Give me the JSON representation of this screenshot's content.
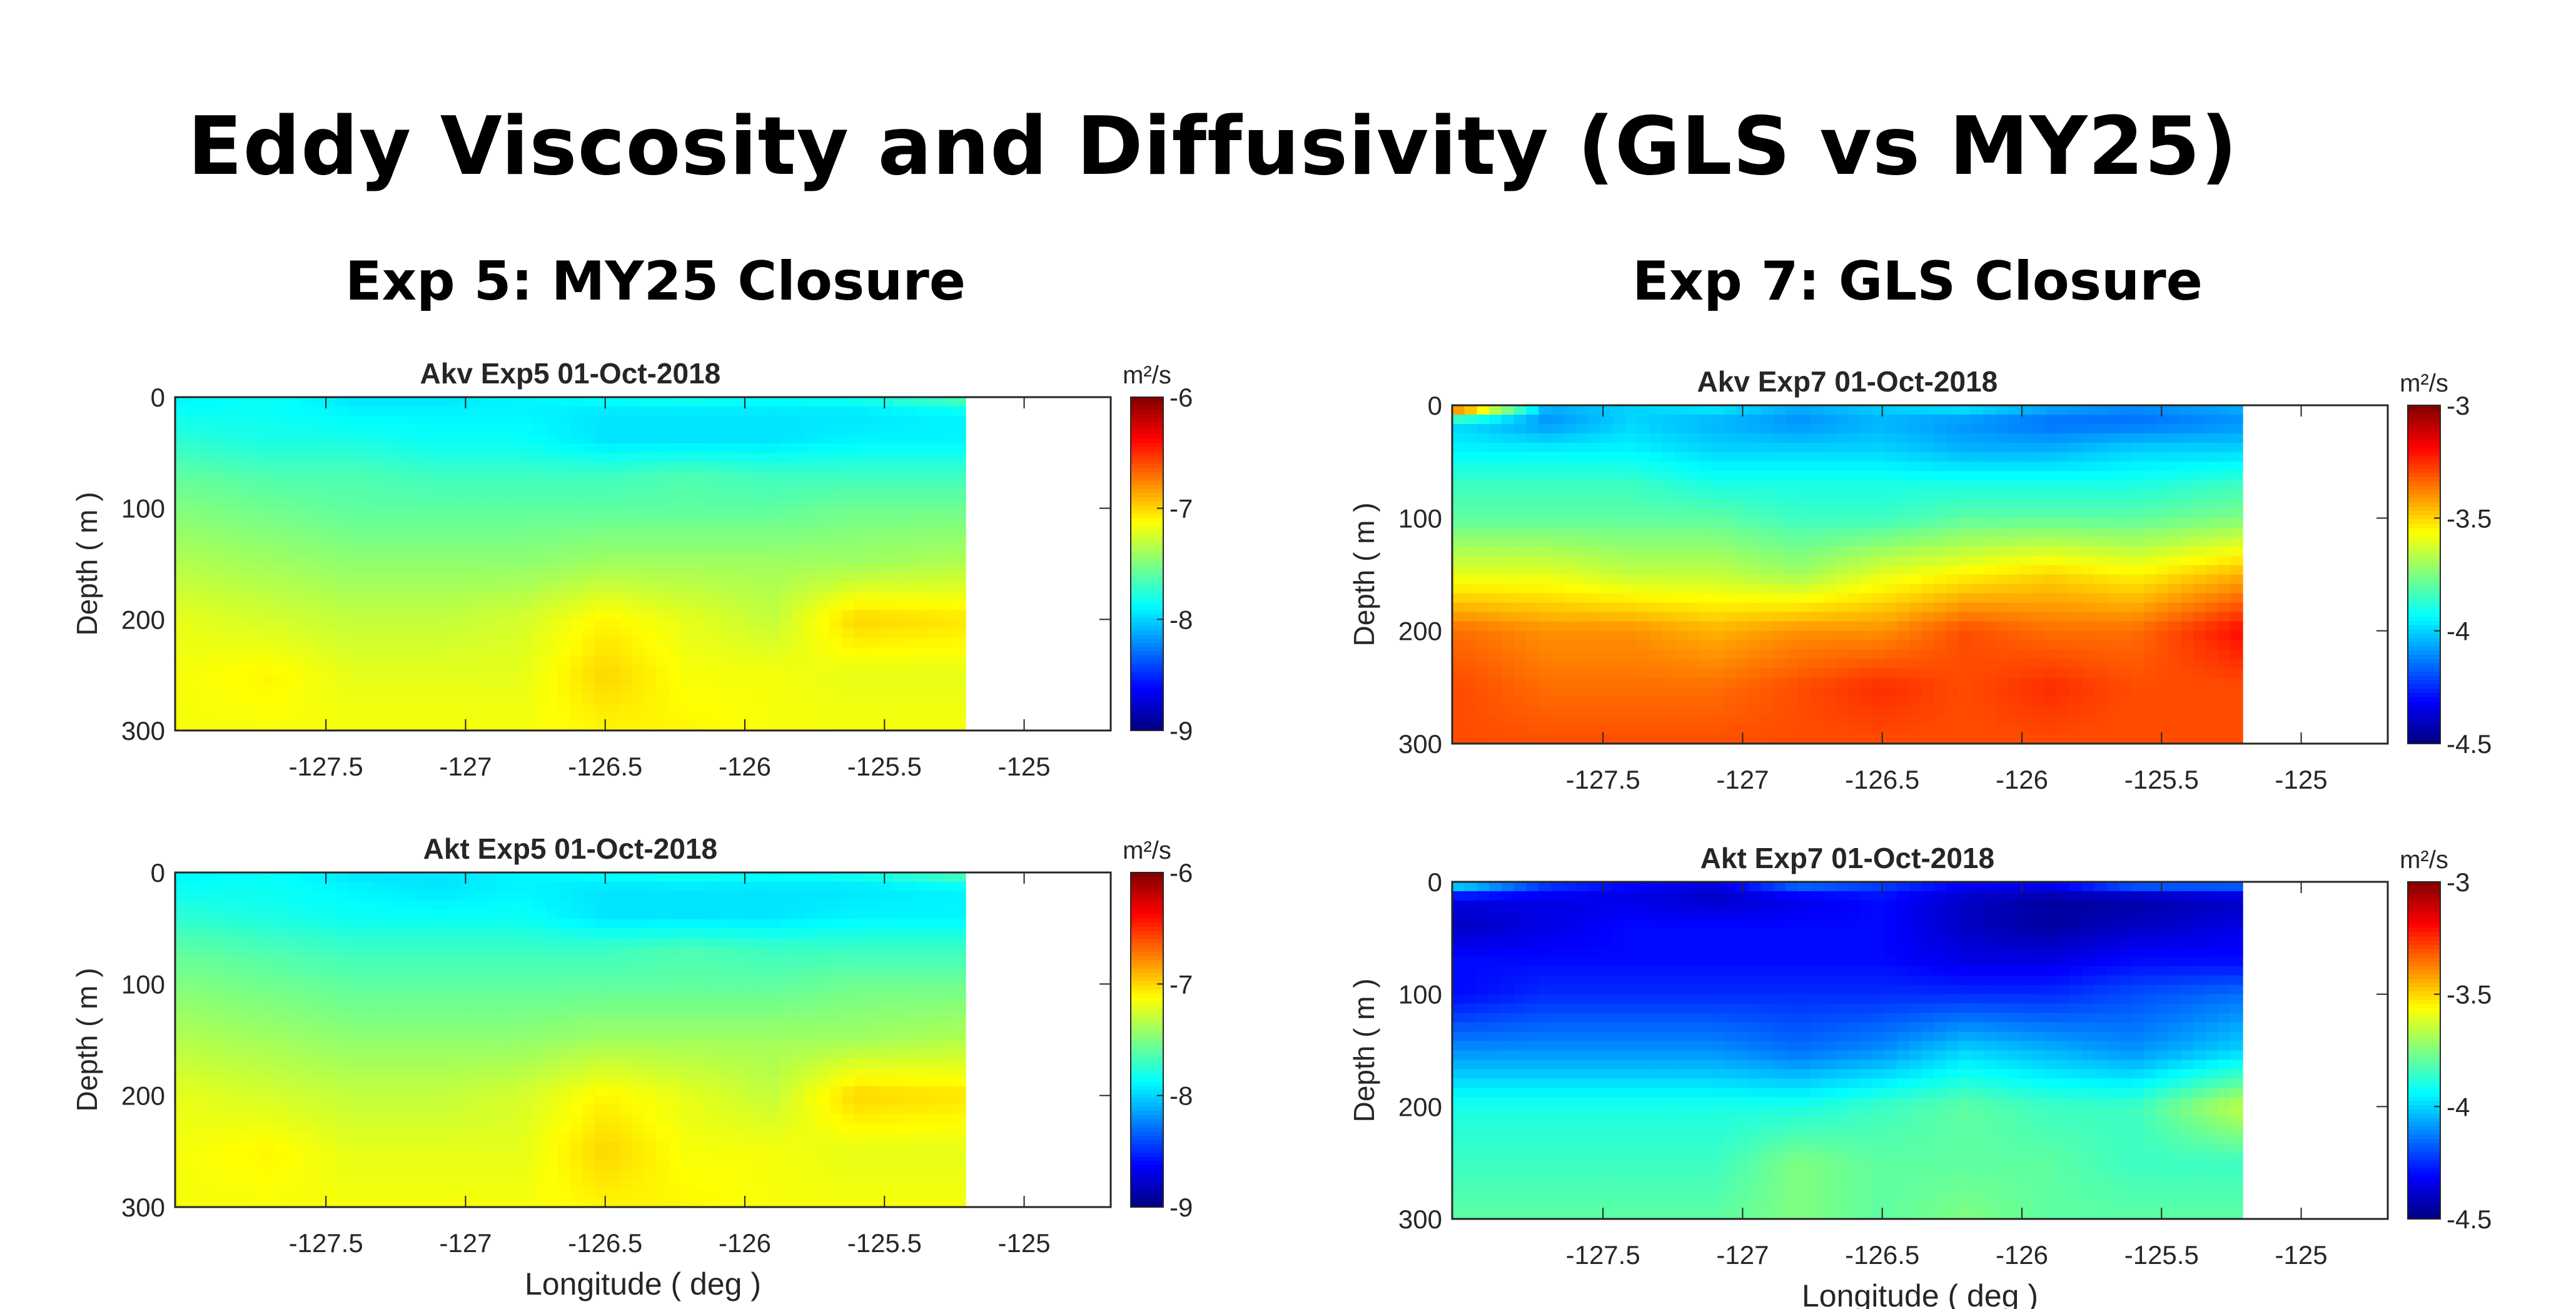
{
  "slide": {
    "title": "Eddy Viscosity and Diffusivity (GLS vs MY25)",
    "left_heading": "Exp 5: MY25 Closure",
    "right_heading": "Exp 7: GLS Closure"
  },
  "chart_data": [
    {
      "type": "heatmap",
      "title": "Akv Exp5 01-Oct-2018",
      "xlabel": "",
      "ylabel": "Depth ( m )",
      "colorbar_label": "m²/s",
      "xlim": [
        -128.04,
        -124.69
      ],
      "ylim": [
        0,
        300
      ],
      "xticks": [
        -127.5,
        -127,
        -126.5,
        -126,
        -125.5,
        -125
      ],
      "xtick_labels": [
        "-127.5",
        "-127",
        "-126.5",
        "-126",
        "-125.5",
        "-125"
      ],
      "yticks": [
        0,
        100,
        200,
        300
      ],
      "ytick_labels": [
        "0",
        "100",
        "200",
        "300"
      ],
      "clim": [
        -9,
        -6
      ],
      "cticks": [
        -9,
        -8,
        -7,
        -6
      ],
      "ctick_labels": [
        "-9",
        "-8",
        "-7",
        "-6"
      ],
      "colormap": "jet",
      "lon": [
        -128.0,
        -127.7,
        -127.4,
        -127.1,
        -126.8,
        -126.5,
        -126.2,
        -125.9,
        -125.6,
        -125.21
      ],
      "depth": [
        0,
        15,
        40,
        70,
        100,
        150,
        200,
        250,
        300
      ],
      "values": [
        [
          -7.9,
          -7.85,
          -7.95,
          -7.95,
          -7.9,
          -7.85,
          -7.8,
          -7.85,
          -7.8,
          -7.6
        ],
        [
          -7.85,
          -7.85,
          -7.9,
          -7.9,
          -7.9,
          -7.95,
          -7.95,
          -7.95,
          -7.95,
          -7.9
        ],
        [
          -7.75,
          -7.8,
          -7.8,
          -7.85,
          -7.85,
          -7.95,
          -7.95,
          -7.95,
          -7.9,
          -7.9
        ],
        [
          -7.6,
          -7.65,
          -7.65,
          -7.7,
          -7.7,
          -7.7,
          -7.65,
          -7.7,
          -7.7,
          -7.7
        ],
        [
          -7.5,
          -7.55,
          -7.6,
          -7.6,
          -7.6,
          -7.6,
          -7.6,
          -7.6,
          -7.55,
          -7.55
        ],
        [
          -7.35,
          -7.4,
          -7.45,
          -7.45,
          -7.45,
          -7.4,
          -7.4,
          -7.4,
          -7.4,
          -7.35
        ],
        [
          -7.2,
          -7.25,
          -7.3,
          -7.3,
          -7.25,
          -7.1,
          -7.2,
          -7.3,
          -7.0,
          -7.05
        ],
        [
          -7.15,
          -7.1,
          -7.2,
          -7.2,
          -7.2,
          -7.0,
          -7.15,
          -7.15,
          -7.2,
          -7.2
        ],
        [
          -7.15,
          -7.15,
          -7.15,
          -7.15,
          -7.15,
          -7.1,
          -7.1,
          -7.15,
          -7.15,
          -7.15
        ]
      ]
    },
    {
      "type": "heatmap",
      "title": "Akt Exp5 01-Oct-2018",
      "xlabel": "Longitude ( deg )",
      "ylabel": "Depth ( m )",
      "colorbar_label": "m²/s",
      "xlim": [
        -128.04,
        -124.69
      ],
      "ylim": [
        0,
        300
      ],
      "xticks": [
        -127.5,
        -127,
        -126.5,
        -126,
        -125.5,
        -125
      ],
      "xtick_labels": [
        "-127.5",
        "-127",
        "-126.5",
        "-126",
        "-125.5",
        "-125"
      ],
      "yticks": [
        0,
        100,
        200,
        300
      ],
      "ytick_labels": [
        "0",
        "100",
        "200",
        "300"
      ],
      "clim": [
        -9,
        -6
      ],
      "cticks": [
        -9,
        -8,
        -7,
        -6
      ],
      "ctick_labels": [
        "-9",
        "-8",
        "-7",
        "-6"
      ],
      "colormap": "jet",
      "lon": [
        -128.0,
        -127.7,
        -127.4,
        -127.1,
        -126.8,
        -126.5,
        -126.2,
        -125.9,
        -125.6,
        -125.21
      ],
      "depth": [
        0,
        15,
        40,
        70,
        100,
        150,
        200,
        250,
        300
      ],
      "values": [
        [
          -7.9,
          -7.85,
          -7.95,
          -7.95,
          -7.9,
          -7.85,
          -7.8,
          -7.85,
          -7.8,
          -7.6
        ],
        [
          -7.85,
          -7.85,
          -7.9,
          -7.95,
          -7.9,
          -7.95,
          -7.95,
          -7.95,
          -7.95,
          -7.9
        ],
        [
          -7.75,
          -7.8,
          -7.85,
          -7.85,
          -7.85,
          -7.95,
          -7.95,
          -7.95,
          -7.9,
          -7.9
        ],
        [
          -7.6,
          -7.65,
          -7.7,
          -7.7,
          -7.7,
          -7.7,
          -7.65,
          -7.7,
          -7.7,
          -7.7
        ],
        [
          -7.5,
          -7.55,
          -7.6,
          -7.6,
          -7.6,
          -7.6,
          -7.6,
          -7.6,
          -7.55,
          -7.55
        ],
        [
          -7.35,
          -7.4,
          -7.45,
          -7.45,
          -7.45,
          -7.4,
          -7.4,
          -7.4,
          -7.4,
          -7.35
        ],
        [
          -7.2,
          -7.25,
          -7.3,
          -7.3,
          -7.25,
          -7.1,
          -7.2,
          -7.3,
          -7.0,
          -7.05
        ],
        [
          -7.15,
          -7.1,
          -7.2,
          -7.2,
          -7.2,
          -7.0,
          -7.15,
          -7.15,
          -7.2,
          -7.2
        ],
        [
          -7.15,
          -7.15,
          -7.15,
          -7.15,
          -7.15,
          -7.1,
          -7.1,
          -7.15,
          -7.15,
          -7.15
        ]
      ]
    },
    {
      "type": "heatmap",
      "title": "Akv Exp7 01-Oct-2018",
      "xlabel": "",
      "ylabel": "Depth ( m )",
      "colorbar_label": "m²/s",
      "xlim": [
        -128.04,
        -124.69
      ],
      "ylim": [
        0,
        300
      ],
      "xticks": [
        -127.5,
        -127,
        -126.5,
        -126,
        -125.5,
        -125
      ],
      "xtick_labels": [
        "-127.5",
        "-127",
        "-126.5",
        "-126",
        "-125.5",
        "-125"
      ],
      "yticks": [
        0,
        100,
        200,
        300
      ],
      "ytick_labels": [
        "0",
        "100",
        "200",
        "300"
      ],
      "clim": [
        -4.5,
        -3
      ],
      "cticks": [
        -4.5,
        -4,
        -3.5,
        -3
      ],
      "ctick_labels": [
        "-4.5",
        "-4",
        "-3.5",
        "-3"
      ],
      "colormap": "jet",
      "lon": [
        -128.0,
        -127.7,
        -127.4,
        -127.1,
        -126.8,
        -126.5,
        -126.2,
        -125.9,
        -125.6,
        -125.21
      ],
      "depth": [
        0,
        15,
        40,
        70,
        100,
        150,
        200,
        250,
        300
      ],
      "values": [
        [
          -3.2,
          -4.05,
          -4.0,
          -3.95,
          -4.05,
          -4.0,
          -3.95,
          -4.05,
          -4.1,
          -4.05
        ],
        [
          -4.0,
          -4.1,
          -4.0,
          -4.05,
          -4.1,
          -4.05,
          -4.1,
          -4.15,
          -4.15,
          -4.1
        ],
        [
          -3.95,
          -3.95,
          -3.95,
          -4.0,
          -4.0,
          -4.0,
          -4.05,
          -4.05,
          -4.0,
          -4.0
        ],
        [
          -3.85,
          -3.85,
          -3.85,
          -3.9,
          -3.9,
          -3.9,
          -3.9,
          -3.9,
          -3.9,
          -3.85
        ],
        [
          -3.8,
          -3.8,
          -3.8,
          -3.8,
          -3.85,
          -3.85,
          -3.8,
          -3.8,
          -3.8,
          -3.75
        ],
        [
          -3.6,
          -3.6,
          -3.65,
          -3.65,
          -3.7,
          -3.6,
          -3.55,
          -3.5,
          -3.55,
          -3.45
        ],
        [
          -3.35,
          -3.4,
          -3.4,
          -3.45,
          -3.4,
          -3.4,
          -3.3,
          -3.35,
          -3.35,
          -3.2
        ],
        [
          -3.3,
          -3.35,
          -3.35,
          -3.35,
          -3.3,
          -3.25,
          -3.3,
          -3.25,
          -3.3,
          -3.3
        ],
        [
          -3.3,
          -3.3,
          -3.3,
          -3.3,
          -3.3,
          -3.3,
          -3.3,
          -3.3,
          -3.3,
          -3.3
        ]
      ]
    },
    {
      "type": "heatmap",
      "title": "Akt Exp7 01-Oct-2018",
      "xlabel": "Longitude ( deg )",
      "ylabel": "Depth ( m )",
      "colorbar_label": "m²/s",
      "xlim": [
        -128.04,
        -124.69
      ],
      "ylim": [
        0,
        300
      ],
      "xticks": [
        -127.5,
        -127,
        -126.5,
        -126,
        -125.5,
        -125
      ],
      "xtick_labels": [
        "-127.5",
        "-127",
        "-126.5",
        "-126",
        "-125.5",
        "-125"
      ],
      "yticks": [
        0,
        100,
        200,
        300
      ],
      "ytick_labels": [
        "0",
        "100",
        "200",
        "300"
      ],
      "clim": [
        -4.5,
        -3
      ],
      "cticks": [
        -4.5,
        -4,
        -3.5,
        -3
      ],
      "ctick_labels": [
        "-4.5",
        "-4",
        "-3.5",
        "-3"
      ],
      "colormap": "jet",
      "lon": [
        -128.0,
        -127.7,
        -127.4,
        -127.1,
        -126.8,
        -126.5,
        -126.2,
        -125.9,
        -125.6,
        -125.21
      ],
      "depth": [
        0,
        15,
        40,
        70,
        100,
        150,
        200,
        250,
        300
      ],
      "values": [
        [
          -3.9,
          -4.2,
          -4.3,
          -4.35,
          -4.1,
          -4.2,
          -4.3,
          -4.3,
          -4.1,
          -4.1
        ],
        [
          -4.35,
          -4.35,
          -4.35,
          -4.4,
          -4.35,
          -4.3,
          -4.4,
          -4.45,
          -4.45,
          -4.4
        ],
        [
          -4.4,
          -4.35,
          -4.3,
          -4.3,
          -4.3,
          -4.3,
          -4.4,
          -4.45,
          -4.4,
          -4.35
        ],
        [
          -4.3,
          -4.3,
          -4.3,
          -4.3,
          -4.3,
          -4.3,
          -4.35,
          -4.35,
          -4.3,
          -4.3
        ],
        [
          -4.3,
          -4.25,
          -4.25,
          -4.25,
          -4.25,
          -4.25,
          -4.25,
          -4.25,
          -4.2,
          -4.15
        ],
        [
          -4.1,
          -4.1,
          -4.1,
          -4.1,
          -4.15,
          -4.1,
          -4.0,
          -4.05,
          -4.1,
          -4.0
        ],
        [
          -3.9,
          -3.9,
          -3.9,
          -3.9,
          -3.9,
          -3.85,
          -3.8,
          -3.85,
          -3.85,
          -3.65
        ],
        [
          -3.85,
          -3.85,
          -3.85,
          -3.85,
          -3.75,
          -3.8,
          -3.8,
          -3.8,
          -3.85,
          -3.85
        ],
        [
          -3.8,
          -3.8,
          -3.8,
          -3.8,
          -3.75,
          -3.8,
          -3.75,
          -3.8,
          -3.8,
          -3.8
        ]
      ]
    }
  ]
}
